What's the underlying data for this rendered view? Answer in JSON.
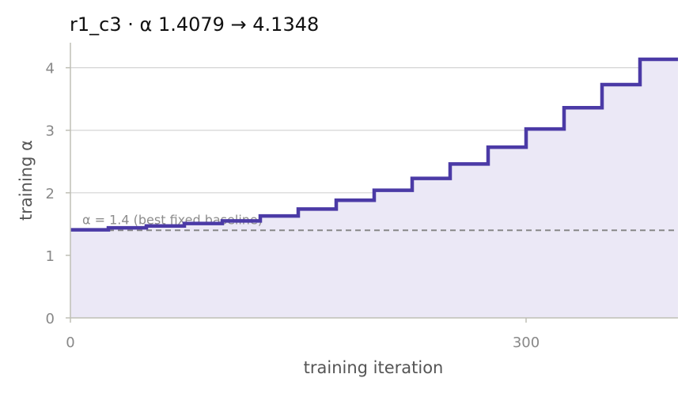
{
  "chart_data": {
    "type": "line",
    "step": true,
    "title": "r1_c3   ·   α 1.4079 → 4.1348",
    "xlabel": "training iteration",
    "ylabel": "training α",
    "xlim": [
      0,
      400
    ],
    "ylim": [
      0,
      4.4
    ],
    "xticks": [
      0,
      300
    ],
    "xtick_labels": [
      "0",
      "300"
    ],
    "yticks": [
      0,
      1,
      2,
      3,
      4
    ],
    "ytick_labels": [
      "0",
      "1",
      "2",
      "3",
      "4"
    ],
    "grid": "horizontal",
    "fill_under": true,
    "series": [
      {
        "x": [
          0,
          25,
          50,
          75,
          100,
          125,
          150,
          175,
          200,
          225,
          250,
          275,
          300,
          325,
          350,
          375,
          400
        ],
        "y": [
          1.4079,
          1.44,
          1.47,
          1.51,
          1.55,
          1.63,
          1.74,
          1.88,
          2.04,
          2.23,
          2.46,
          2.73,
          3.02,
          3.36,
          3.73,
          4.1348,
          4.1348
        ]
      }
    ],
    "reference_line": {
      "y": 1.4,
      "label": "α = 1.4 (best fixed baseline)"
    },
    "colors": {
      "line": "#4b3aa6",
      "fill": "#ebe8f6",
      "reference": "#888888",
      "grid": "#d4d4d4",
      "axis": "#bfbfb5"
    }
  }
}
